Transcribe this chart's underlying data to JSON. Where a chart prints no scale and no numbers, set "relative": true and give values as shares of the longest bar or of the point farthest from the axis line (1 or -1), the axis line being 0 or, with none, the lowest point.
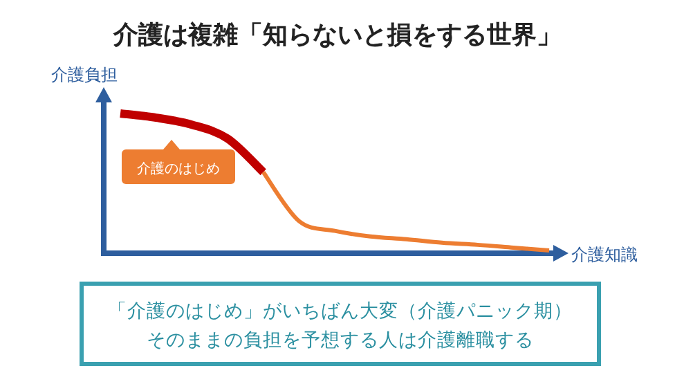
{
  "chart_data": {
    "type": "line",
    "title": "介護は複雑「知らないと損をする世界」",
    "xlabel": "介護知識",
    "ylabel": "介護負担",
    "relative": true,
    "categories": [
      null,
      null,
      null,
      null,
      null,
      null,
      null,
      null,
      null,
      null,
      null,
      null,
      null
    ],
    "series": [
      {
        "color": "#c00000",
        "values": [
          1.0,
          0.97,
          0.92,
          0.82,
          0.58,
          null,
          null,
          null,
          null,
          null,
          null,
          null,
          null
        ]
      },
      {
        "color": "#ed7d31",
        "values": [
          null,
          null,
          null,
          null,
          0.58,
          0.23,
          0.16,
          0.12,
          0.1,
          0.075,
          0.06,
          0.04,
          0.02
        ]
      }
    ],
    "annotations": [
      "介護のはじめ",
      "「介護のはじめ」がいちばん大変（介護パニック期）",
      "そのままの負担を予想する人は介護離職する"
    ]
  }
}
